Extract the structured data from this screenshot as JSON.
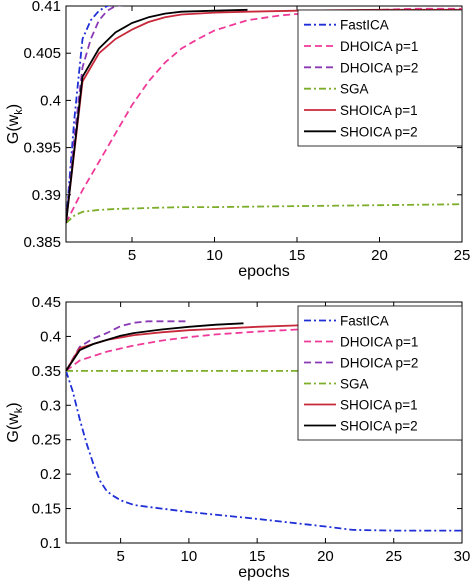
{
  "chart_data": [
    {
      "type": "line",
      "xlabel": "epochs",
      "ylabel": "G(w",
      "ylabel_sub": "k",
      "ylabel_close": ")",
      "xlim": [
        1,
        25
      ],
      "ylim": [
        0.385,
        0.41
      ],
      "xticks": [
        5,
        10,
        15,
        20,
        25
      ],
      "yticks": [
        0.385,
        0.39,
        0.395,
        0.4,
        0.405,
        0.41
      ],
      "ytick_labels": [
        "0.385",
        "0.39",
        "0.395",
        "0.4",
        "0.405",
        "0.41"
      ],
      "legend_position": "top-right",
      "series": [
        {
          "name": "FastICA",
          "color": "#1f2fd6",
          "dash": "dashdot",
          "x": [
            1,
            1.5,
            2,
            2.5,
            3,
            3.5,
            4,
            5,
            6,
            8,
            10,
            15,
            20,
            25
          ],
          "y": [
            0.387,
            0.398,
            0.4065,
            0.4085,
            0.4095,
            0.41,
            0.4102,
            0.4102,
            0.4102,
            0.4102,
            0.4102,
            0.4102,
            0.4102,
            0.4102
          ]
        },
        {
          "name": "DHOICA p=1",
          "color": "#ef3a9a",
          "dash": "dash",
          "x": [
            1,
            2,
            3,
            4,
            5,
            6,
            7,
            8,
            9,
            10,
            12,
            14,
            16,
            18,
            20,
            22,
            25
          ],
          "y": [
            0.387,
            0.3905,
            0.3935,
            0.3965,
            0.3995,
            0.402,
            0.404,
            0.4055,
            0.4065,
            0.4074,
            0.4085,
            0.409,
            0.4093,
            0.4095,
            0.4096,
            0.4097,
            0.4097
          ]
        },
        {
          "name": "DHOICA p=2",
          "color": "#8a39b5",
          "dash": "dash",
          "x": [
            1,
            1.5,
            2,
            2.5,
            3,
            3.5,
            4,
            5,
            6,
            8
          ],
          "y": [
            0.387,
            0.396,
            0.4035,
            0.4065,
            0.4085,
            0.4095,
            0.41,
            0.4102,
            0.4102,
            0.4102
          ]
        },
        {
          "name": "SGA",
          "color": "#7cae2a",
          "dash": "dashdot",
          "x": [
            1,
            1.5,
            2,
            3,
            4,
            6,
            8,
            10,
            15,
            20,
            25
          ],
          "y": [
            0.387,
            0.3878,
            0.3882,
            0.3884,
            0.3885,
            0.3886,
            0.3887,
            0.3887,
            0.3888,
            0.3889,
            0.389
          ]
        },
        {
          "name": "SHOICA p=1",
          "color": "#c8283a",
          "dash": "solid",
          "x": [
            1,
            2,
            3,
            4,
            5,
            6,
            7,
            8,
            10,
            12,
            15,
            20,
            25
          ],
          "y": [
            0.387,
            0.402,
            0.405,
            0.4065,
            0.4075,
            0.4083,
            0.4088,
            0.4091,
            0.4093,
            0.4094,
            0.4095,
            0.4096,
            0.4096
          ]
        },
        {
          "name": "SHOICA p=2",
          "color": "#000000",
          "dash": "solid",
          "x": [
            1,
            2,
            3,
            4,
            5,
            6,
            7,
            8,
            10,
            12
          ],
          "y": [
            0.387,
            0.4025,
            0.4055,
            0.4072,
            0.4082,
            0.4088,
            0.4092,
            0.4094,
            0.4095,
            0.4096
          ]
        }
      ]
    },
    {
      "type": "line",
      "xlabel": "epochs",
      "ylabel": "G(w",
      "ylabel_sub": "k",
      "ylabel_close": ")",
      "xlim": [
        1,
        30
      ],
      "ylim": [
        0.1,
        0.45
      ],
      "xticks": [
        5,
        10,
        15,
        20,
        25,
        30
      ],
      "yticks": [
        0.1,
        0.15,
        0.2,
        0.25,
        0.3,
        0.35,
        0.4,
        0.45
      ],
      "ytick_labels": [
        "0.1",
        "0.15",
        "0.2",
        "0.25",
        "0.3",
        "0.35",
        "0.4",
        "0.45"
      ],
      "legend_position": "top-right",
      "series": [
        {
          "name": "FastICA",
          "color": "#1f2fd6",
          "dash": "dashdot",
          "x": [
            1,
            1.5,
            2,
            2.5,
            3,
            3.5,
            4,
            4.5,
            5,
            6,
            8,
            10,
            15,
            20,
            22,
            25,
            30
          ],
          "y": [
            0.35,
            0.32,
            0.28,
            0.245,
            0.215,
            0.19,
            0.175,
            0.168,
            0.162,
            0.155,
            0.15,
            0.145,
            0.135,
            0.124,
            0.119,
            0.118,
            0.118
          ]
        },
        {
          "name": "DHOICA p=1",
          "color": "#ef3a9a",
          "dash": "dash",
          "x": [
            1,
            2,
            4,
            6,
            8,
            10,
            12,
            15,
            18,
            20,
            22,
            25,
            30
          ],
          "y": [
            0.35,
            0.365,
            0.378,
            0.387,
            0.394,
            0.399,
            0.403,
            0.407,
            0.41,
            0.412,
            0.414,
            0.416,
            0.418
          ]
        },
        {
          "name": "DHOICA p=2",
          "color": "#8a39b5",
          "dash": "dash",
          "x": [
            1,
            2,
            3,
            4,
            5,
            6,
            7,
            8,
            9,
            10
          ],
          "y": [
            0.35,
            0.385,
            0.397,
            0.405,
            0.415,
            0.42,
            0.422,
            0.422,
            0.422,
            0.422
          ]
        },
        {
          "name": "SGA",
          "color": "#7cae2a",
          "dash": "dashdot",
          "x": [
            1,
            5,
            10,
            15,
            20,
            25,
            30
          ],
          "y": [
            0.35,
            0.35,
            0.35,
            0.35,
            0.35,
            0.35,
            0.35
          ]
        },
        {
          "name": "SHOICA p=1",
          "color": "#c8283a",
          "dash": "solid",
          "x": [
            1,
            2,
            4,
            6,
            8,
            10,
            12,
            15,
            18,
            20,
            22,
            25,
            30
          ],
          "y": [
            0.35,
            0.383,
            0.395,
            0.402,
            0.406,
            0.409,
            0.411,
            0.414,
            0.416,
            0.417,
            0.418,
            0.419,
            0.42
          ]
        },
        {
          "name": "SHOICA p=2",
          "color": "#000000",
          "dash": "solid",
          "x": [
            1,
            2,
            3,
            4,
            5,
            6,
            8,
            10,
            12,
            14
          ],
          "y": [
            0.35,
            0.38,
            0.389,
            0.395,
            0.401,
            0.405,
            0.41,
            0.414,
            0.417,
            0.419
          ]
        }
      ]
    }
  ]
}
